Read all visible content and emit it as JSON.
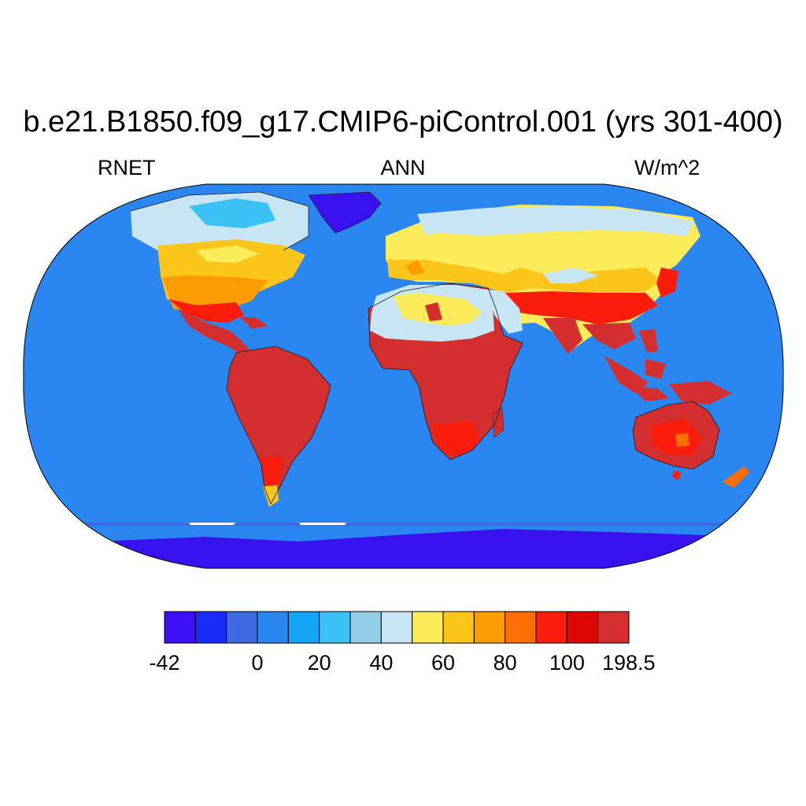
{
  "title": "b.e21.B1850.f09_g17.CMIP6-piControl.001 (yrs 301-400)",
  "subtitle": {
    "left": "RNET",
    "center": "ANN",
    "right": "W/m^2"
  },
  "colors": {
    "ocean": "#2a87f2",
    "land_tropical": "#d42e2e",
    "antarctica": "#3a12f0",
    "greenland": "#3a12f0"
  },
  "colorbar": {
    "colors": [
      "#3d10f5",
      "#1a2bf5",
      "#3d6ae0",
      "#2a87f2",
      "#12a5f5",
      "#3bc2f5",
      "#94cde8",
      "#c8e5f5",
      "#fcec5a",
      "#fcc51a",
      "#fc9c00",
      "#fc6e00",
      "#fc1c0c",
      "#e00505",
      "#d42e2e"
    ],
    "labels": [
      {
        "text": "-42",
        "boundary": 0
      },
      {
        "text": "0",
        "boundary": 3
      },
      {
        "text": "20",
        "boundary": 5
      },
      {
        "text": "40",
        "boundary": 7
      },
      {
        "text": "60",
        "boundary": 9
      },
      {
        "text": "80",
        "boundary": 11
      },
      {
        "text": "100",
        "boundary": 13
      },
      {
        "text": "198.5",
        "boundary": 15
      }
    ]
  }
}
